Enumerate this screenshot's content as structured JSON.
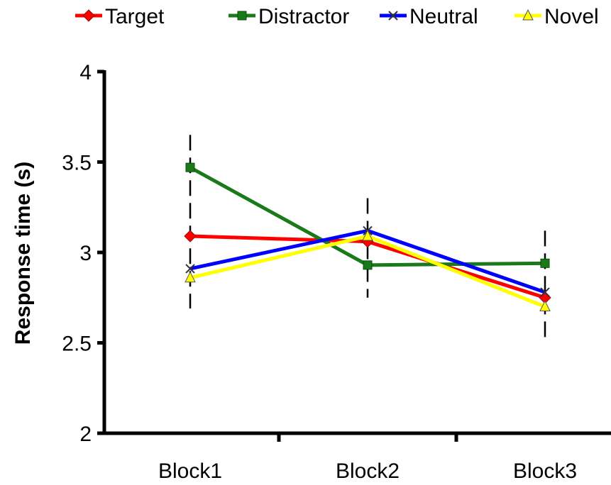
{
  "chart_data": {
    "type": "line",
    "title": "",
    "xlabel": "",
    "ylabel": "Response time (s)",
    "categories": [
      "Block1",
      "Block2",
      "Block3"
    ],
    "ylim": [
      2,
      4
    ],
    "yticks": [
      "2",
      "2.5",
      "3",
      "3.5",
      "4"
    ],
    "grid": false,
    "legend_position": "top",
    "error_bars": {
      "style": "dashed",
      "color": "#000000",
      "lower": [
        2.69,
        2.75,
        2.52
      ],
      "upper": [
        3.65,
        3.3,
        3.12
      ]
    },
    "series": [
      {
        "name": "Target",
        "color": "#ff0000",
        "marker": "diamond",
        "values": [
          3.09,
          3.06,
          2.75
        ]
      },
      {
        "name": "Distractor",
        "color": "#1a7a1a",
        "marker": "square",
        "values": [
          3.47,
          2.93,
          2.94
        ]
      },
      {
        "name": "Neutral",
        "color": "#0000ff",
        "marker": "x",
        "values": [
          2.91,
          3.12,
          2.78
        ]
      },
      {
        "name": "Novel",
        "color": "#ffff00",
        "marker": "triangle",
        "values": [
          2.86,
          3.09,
          2.7
        ]
      }
    ]
  }
}
